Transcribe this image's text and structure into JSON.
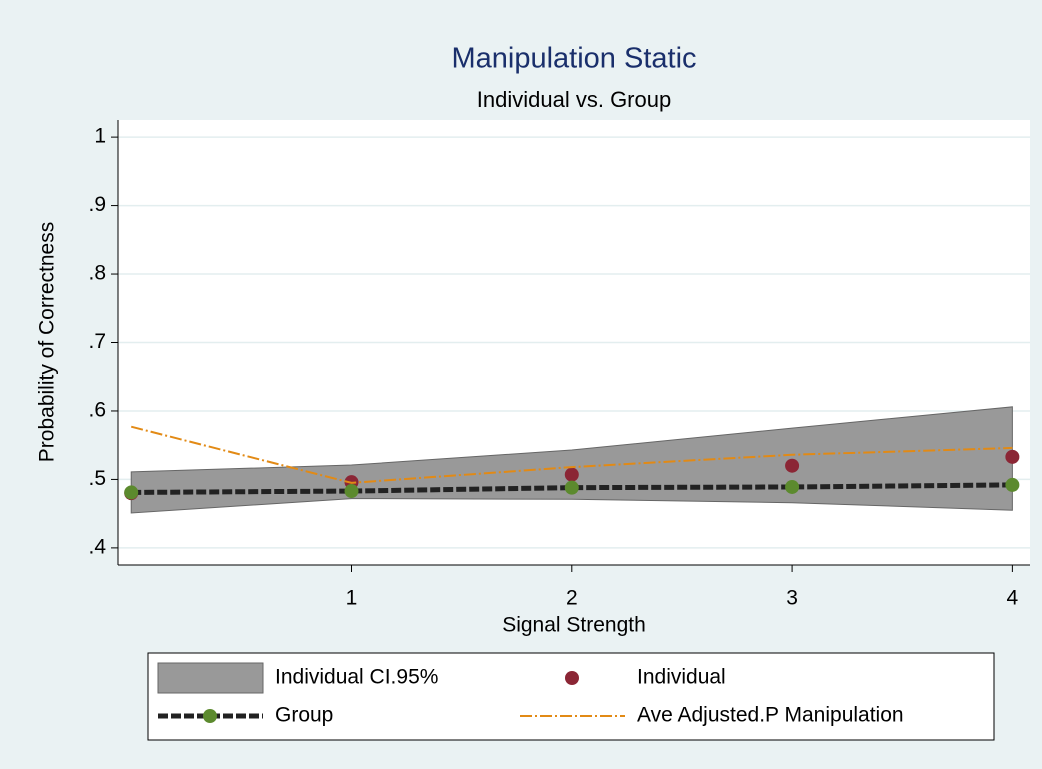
{
  "chart_data": {
    "type": "line",
    "title": "Manipulation Static",
    "subtitle": "Individual vs. Group",
    "xlabel": "Signal Strength",
    "ylabel": "Probability of Correctness",
    "x": [
      0,
      1,
      2,
      3,
      4
    ],
    "xlim": [
      -0.06,
      4.08
    ],
    "xticks": [
      1,
      2,
      3,
      4
    ],
    "ylim": [
      0.375,
      1.025
    ],
    "yticks": [
      {
        "value": 0.4,
        "label": ".4"
      },
      {
        "value": 0.5,
        "label": ".5"
      },
      {
        "value": 0.6,
        "label": ".6"
      },
      {
        "value": 0.7,
        "label": ".7"
      },
      {
        "value": 0.8,
        "label": ".8"
      },
      {
        "value": 0.9,
        "label": ".9"
      },
      1
    ],
    "grid": true,
    "band": {
      "name": "Individual CI.95%",
      "color": "#999999",
      "upper": [
        0.511,
        0.521,
        0.543,
        0.575,
        0.606
      ],
      "lower": [
        0.451,
        0.472,
        0.471,
        0.466,
        0.455
      ]
    },
    "series": [
      {
        "name": "Individual",
        "color": "#8b2635",
        "style": "markers",
        "values": [
          0.48,
          0.496,
          0.507,
          0.52,
          0.533
        ]
      },
      {
        "name": "Group",
        "color": "#5c8a2e",
        "style": "dashed-line-markers",
        "values": [
          0.481,
          0.483,
          0.488,
          0.489,
          0.492
        ]
      },
      {
        "name": "Ave Adjusted.P Manipulation",
        "color": "#e28a15",
        "style": "dash-dot-line",
        "values": [
          0.577,
          0.495,
          0.518,
          0.536,
          0.546
        ]
      }
    ]
  }
}
